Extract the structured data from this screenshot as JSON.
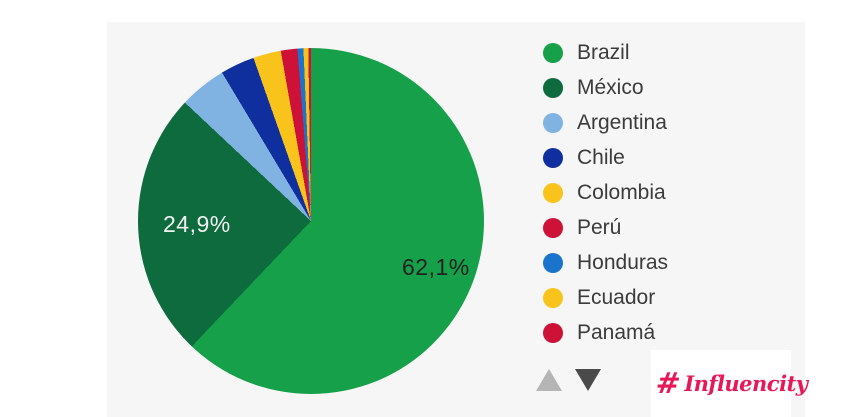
{
  "chart_data": {
    "type": "pie",
    "title": "",
    "categories": [
      "Brazil",
      "México",
      "Argentina",
      "Chile",
      "Colombia",
      "Perú",
      "Honduras",
      "Ecuador",
      "Panamá"
    ],
    "values": [
      62.1,
      24.9,
      4.4,
      3.2,
      2.6,
      1.55,
      0.55,
      0.45,
      0.25
    ],
    "unit": "%",
    "colors": [
      "#15a049",
      "#0d6b3d",
      "#80b3e2",
      "#102f9e",
      "#f8c41c",
      "#ce1237",
      "#1a74cb",
      "#f8c41c",
      "#ce1237"
    ],
    "start_angle_deg": 0,
    "direction": "clockwise",
    "legend_position": "right",
    "slice_labels": [
      {
        "series": "Brazil",
        "text": "62,1%",
        "color": "#212121"
      },
      {
        "series": "México",
        "text": "24,9%",
        "color": "#f2f2f2"
      }
    ]
  },
  "legend": {
    "items": [
      {
        "label": "Brazil",
        "color": "#15a049"
      },
      {
        "label": "México",
        "color": "#0d6b3d"
      },
      {
        "label": "Argentina",
        "color": "#80b3e2"
      },
      {
        "label": "Chile",
        "color": "#102f9e"
      },
      {
        "label": "Colombia",
        "color": "#f8c41c"
      },
      {
        "label": "Perú",
        "color": "#ce1237"
      },
      {
        "label": "Honduras",
        "color": "#1a74cb"
      },
      {
        "label": "Ecuador",
        "color": "#f8c41c"
      },
      {
        "label": "Panamá",
        "color": "#ce1237"
      }
    ],
    "pager": {
      "up_icon": "triangle-up",
      "up_color": "#b5b5b5",
      "down_icon": "triangle-down",
      "down_color": "#4a4a4a"
    }
  },
  "logo": {
    "hash_symbol": "#",
    "text": "Influencity",
    "color": "#e81758"
  },
  "panel_background": "#f6f6f7"
}
